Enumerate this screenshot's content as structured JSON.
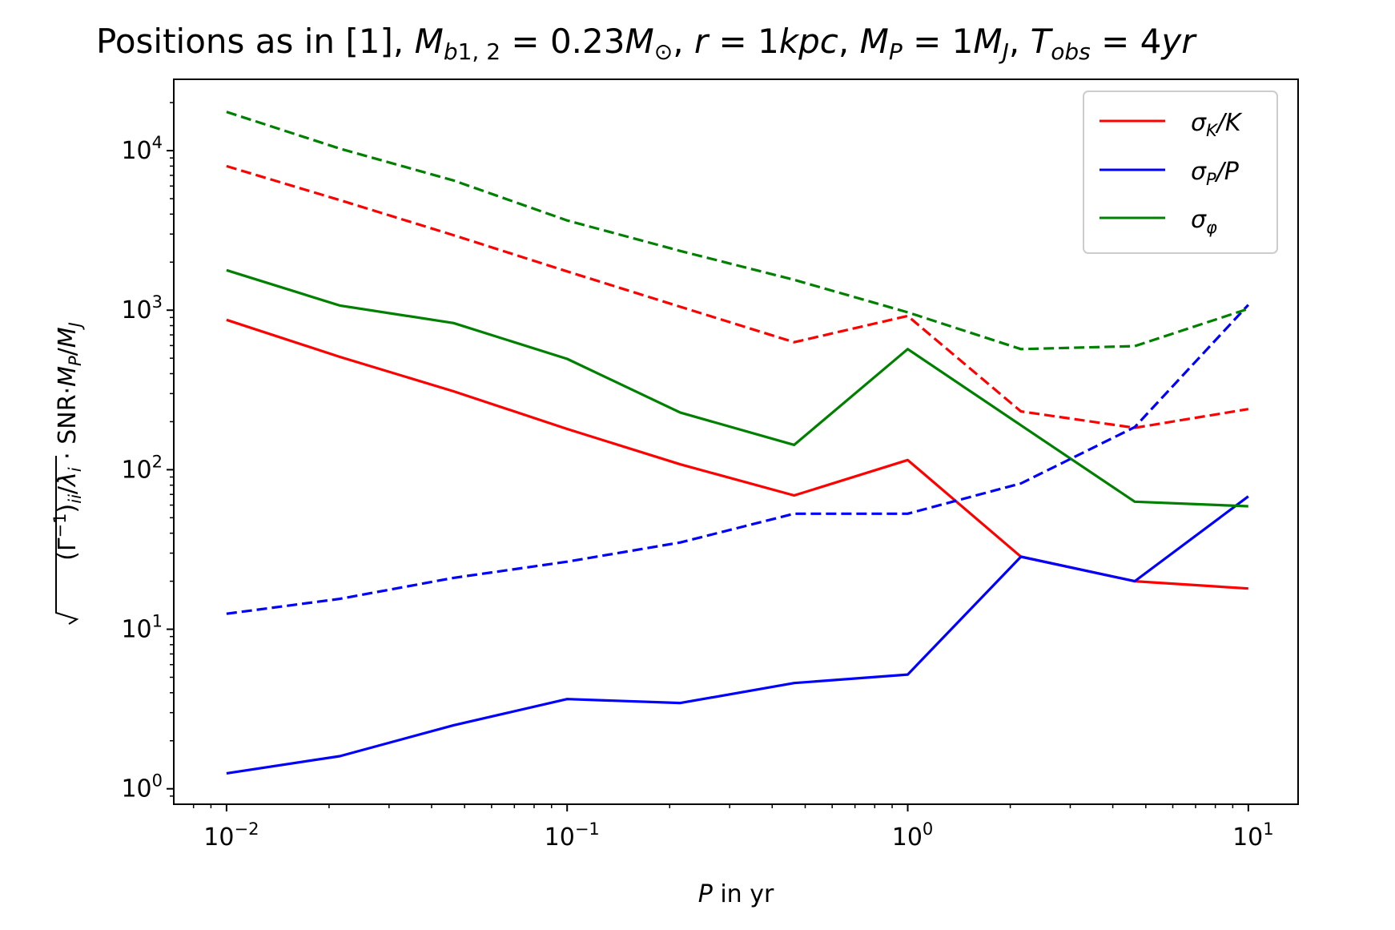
{
  "chart_data": {
    "type": "line",
    "title": "Positions as in [1], M_b1,2 = 0.23M_⊙, r = 1kpc, M_P = 1M_J, T_obs = 4yr",
    "xlabel": "P in yr",
    "ylabel": "√((Γ⁻¹)_ii)/λ_i · SNR·M_P/M_J",
    "xscale": "log",
    "yscale": "log",
    "xlim": [
      0.007,
      14
    ],
    "ylim": [
      0.8,
      28000
    ],
    "grid": false,
    "legend_position": "top-right",
    "x": [
      0.01,
      0.0215,
      0.0464,
      0.1,
      0.215,
      0.464,
      1.0,
      2.15,
      4.64,
      10.0
    ],
    "series": [
      {
        "name": "σ_K/K",
        "color": "#ff0000",
        "dash": false,
        "values": [
          870,
          510,
          310,
          180,
          108,
          69,
          115,
          28.5,
          20,
          18
        ]
      },
      {
        "name": "σ_P/P",
        "color": "#0000ff",
        "dash": false,
        "values": [
          1.25,
          1.6,
          2.5,
          3.65,
          3.45,
          4.6,
          5.2,
          28.5,
          20,
          68
        ]
      },
      {
        "name": "σ_φ",
        "color": "#008000",
        "dash": false,
        "values": [
          1780,
          1070,
          830,
          495,
          228,
          143,
          570,
          190,
          63,
          59
        ]
      },
      {
        "color": "#ff0000",
        "dash": true,
        "values": [
          8000,
          4900,
          2950,
          1750,
          1050,
          630,
          920,
          232,
          183,
          240
        ]
      },
      {
        "color": "#0000ff",
        "dash": true,
        "values": [
          12.5,
          15.5,
          21,
          26.5,
          35,
          53,
          53,
          82,
          185,
          1080
        ]
      },
      {
        "color": "#008000",
        "dash": true,
        "values": [
          17500,
          10300,
          6500,
          3650,
          2350,
          1550,
          970,
          570,
          595,
          1020
        ]
      }
    ],
    "x_ticks": [
      {
        "base": "10",
        "exp": "−2"
      },
      {
        "base": "10",
        "exp": "−1"
      },
      {
        "base": "10",
        "exp": "0"
      },
      {
        "base": "10",
        "exp": "1"
      }
    ],
    "y_ticks": [
      {
        "base": "10",
        "exp": "0"
      },
      {
        "base": "10",
        "exp": "1"
      },
      {
        "base": "10",
        "exp": "2"
      },
      {
        "base": "10",
        "exp": "3"
      },
      {
        "base": "10",
        "exp": "4"
      }
    ]
  }
}
